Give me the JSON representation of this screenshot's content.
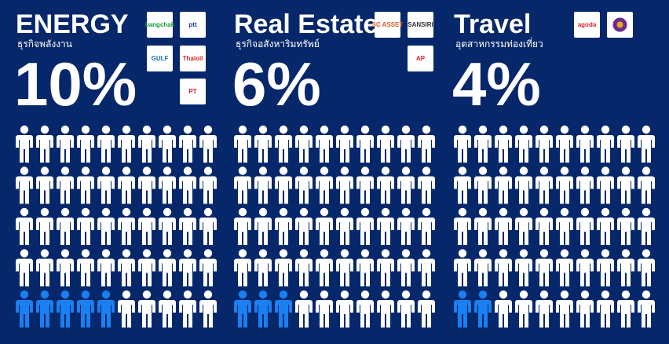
{
  "chart_data": {
    "type": "pictogram",
    "categories": [
      "ENERGY",
      "Real Estate",
      "Travel"
    ],
    "subtitles": [
      "ธุรกิจพลังงาน",
      "ธุรกิจอสังหาริมทรัพย์",
      "อุตสาหกรรมท่องเที่ยว"
    ],
    "values": [
      10,
      6,
      4
    ],
    "value_labels": [
      "10%",
      "6%",
      "4%"
    ],
    "ylim": [
      0,
      100
    ],
    "color": "#1a7ff0",
    "logos": [
      [
        "bangchak",
        "ptt",
        "GULF",
        "Thaioil",
        "PT"
      ],
      [
        "SC ASSET",
        "SANSIRI",
        "AP"
      ],
      [
        "agoda"
      ]
    ]
  }
}
